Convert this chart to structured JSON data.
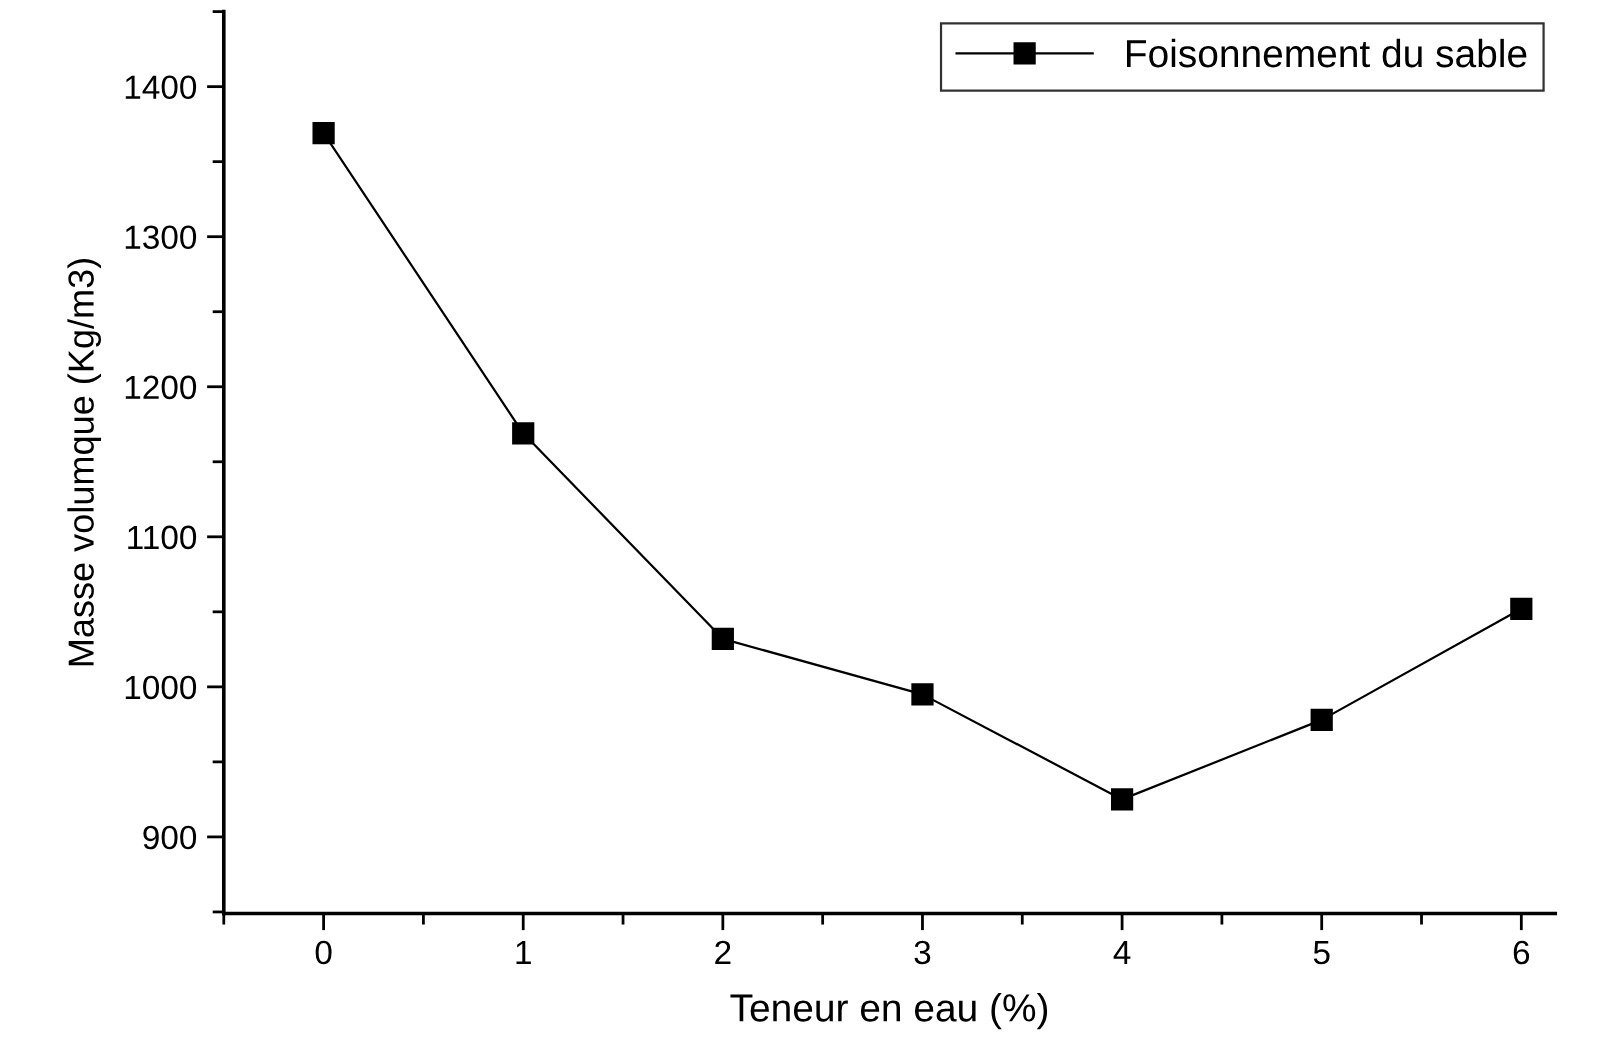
{
  "chart_data": {
    "type": "line",
    "xlabel": "Teneur en eau (%)",
    "ylabel": "Masse volumque (Kg/m3)",
    "x": [
      0,
      1,
      2,
      3,
      4,
      5,
      6
    ],
    "series": [
      {
        "name": "Foisonnement du sable",
        "color": "#000000",
        "values": [
          1369,
          1169,
          1032,
          995,
          925,
          978,
          1052
        ]
      }
    ],
    "xlim": [
      -0.5,
      6.17
    ],
    "xticks": [
      0,
      1,
      2,
      3,
      4,
      5,
      6
    ],
    "ylim": [
      849,
      1450
    ],
    "yticks": [
      900,
      1000,
      1100,
      1200,
      1300,
      1400
    ],
    "marker": "square",
    "line_style": "solid",
    "legend": "top right",
    "grid": false
  }
}
